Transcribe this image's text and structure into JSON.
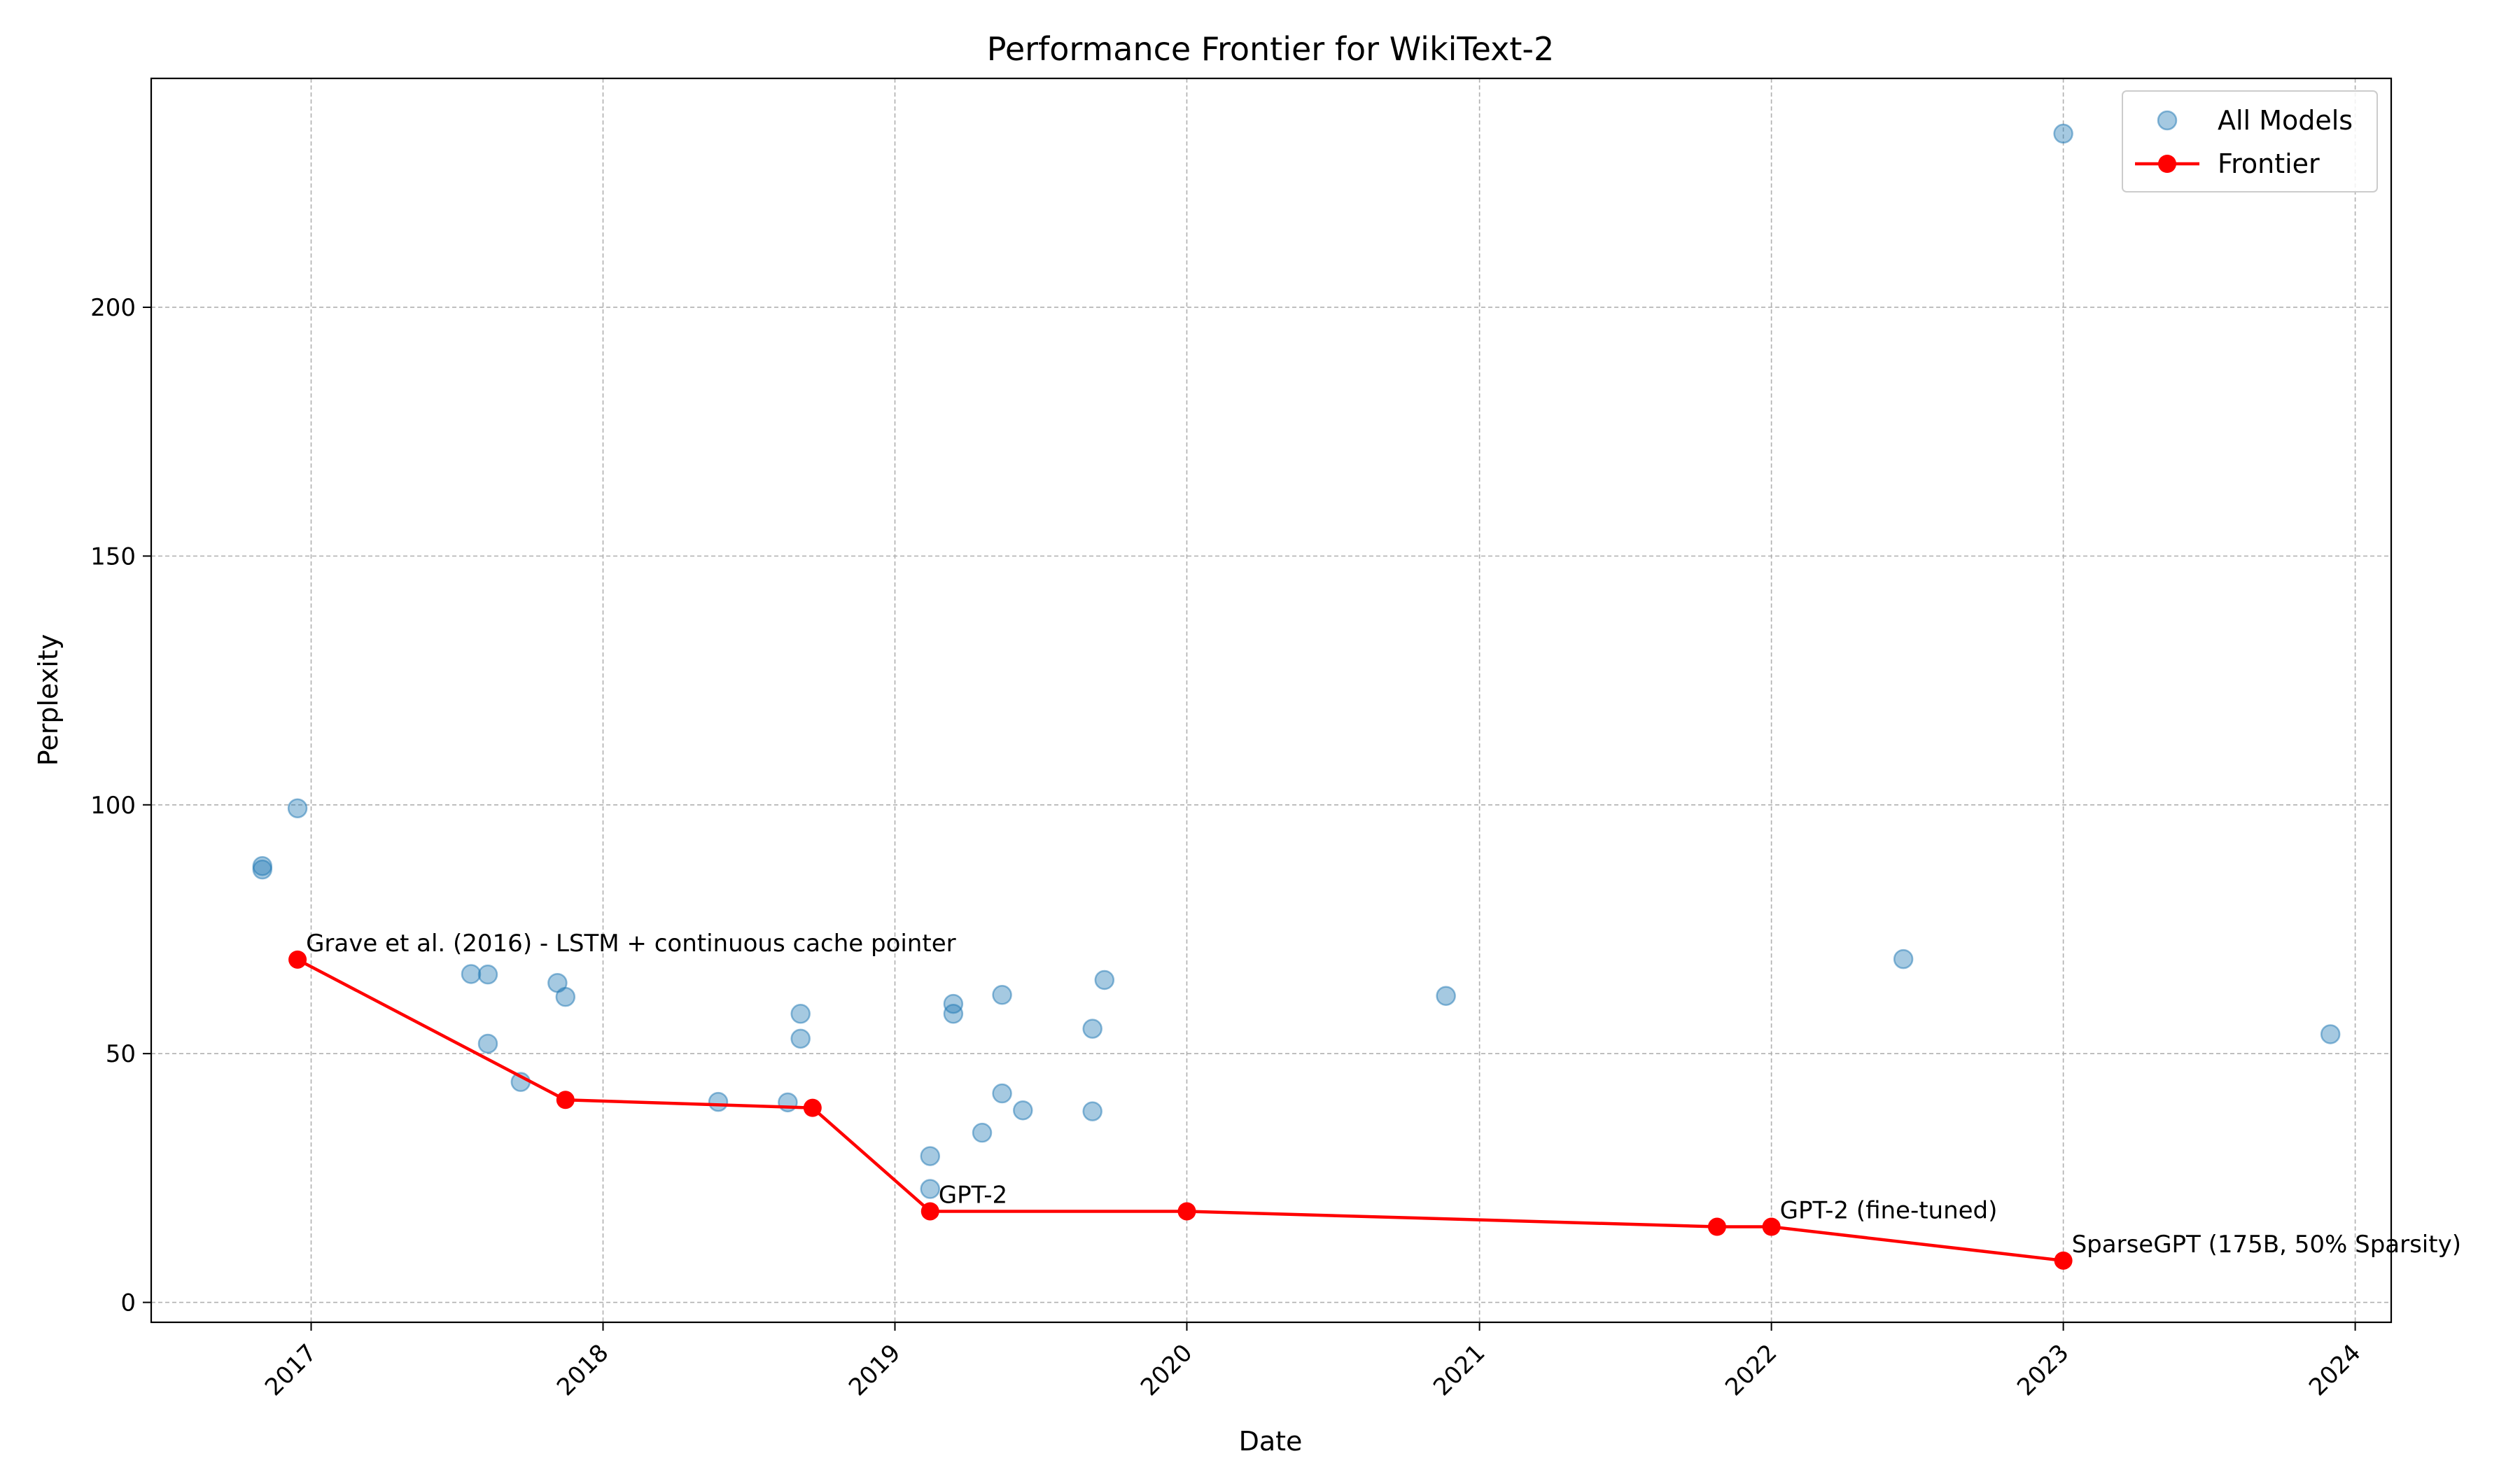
{
  "chart_data": {
    "type": "scatter",
    "title": "Performance Frontier for WikiText-2",
    "xlabel": "Date",
    "ylabel": "Perplexity",
    "xlim": [
      "2016-06-15",
      "2024-02-15"
    ],
    "ylim": [
      -4,
      246
    ],
    "x_ticks": [
      "2017",
      "2018",
      "2019",
      "2020",
      "2021",
      "2022",
      "2023",
      "2024"
    ],
    "y_ticks": [
      0,
      50,
      100,
      150,
      200
    ],
    "grid": true,
    "legend_position": "top-right",
    "colors": {
      "all_models": "#1f77b4",
      "frontier": "#ff0000"
    },
    "series": [
      {
        "name": "All Models",
        "kind": "scatter",
        "points": [
          {
            "x": "2016-11-01",
            "y": 87.7
          },
          {
            "x": "2016-11-01",
            "y": 87.0
          },
          {
            "x": "2016-12-15",
            "y": 99.3
          },
          {
            "x": "2017-07-20",
            "y": 66.0
          },
          {
            "x": "2017-08-10",
            "y": 65.9
          },
          {
            "x": "2017-08-10",
            "y": 52.0
          },
          {
            "x": "2017-09-20",
            "y": 44.3
          },
          {
            "x": "2017-11-05",
            "y": 64.2
          },
          {
            "x": "2017-11-15",
            "y": 61.4
          },
          {
            "x": "2018-05-25",
            "y": 40.3
          },
          {
            "x": "2018-08-20",
            "y": 40.2
          },
          {
            "x": "2018-09-05",
            "y": 58.0
          },
          {
            "x": "2018-09-05",
            "y": 53.0
          },
          {
            "x": "2019-02-14",
            "y": 29.4
          },
          {
            "x": "2019-02-14",
            "y": 22.8
          },
          {
            "x": "2019-03-15",
            "y": 60.0
          },
          {
            "x": "2019-03-15",
            "y": 58.0
          },
          {
            "x": "2019-04-20",
            "y": 34.1
          },
          {
            "x": "2019-05-15",
            "y": 61.8
          },
          {
            "x": "2019-05-15",
            "y": 42.0
          },
          {
            "x": "2019-06-10",
            "y": 38.6
          },
          {
            "x": "2019-09-05",
            "y": 55.0
          },
          {
            "x": "2019-09-05",
            "y": 38.4
          },
          {
            "x": "2019-09-20",
            "y": 64.8
          },
          {
            "x": "2020-11-20",
            "y": 61.6
          },
          {
            "x": "2022-06-15",
            "y": 69.0
          },
          {
            "x": "2023-01-01",
            "y": 234.9
          },
          {
            "x": "2023-12-01",
            "y": 53.9
          }
        ]
      },
      {
        "name": "Frontier",
        "kind": "line",
        "points": [
          {
            "x": "2016-12-15",
            "y": 68.9
          },
          {
            "x": "2017-11-15",
            "y": 40.7
          },
          {
            "x": "2018-09-20",
            "y": 39.1
          },
          {
            "x": "2019-02-14",
            "y": 18.3
          },
          {
            "x": "2020-01-01",
            "y": 18.3
          },
          {
            "x": "2021-10-25",
            "y": 15.2
          },
          {
            "x": "2022-01-01",
            "y": 15.2
          },
          {
            "x": "2023-01-01",
            "y": 8.4
          }
        ]
      }
    ],
    "annotations": [
      {
        "text": "Grave et al. (2016) - LSTM + continuous cache pointer",
        "x": "2016-12-15",
        "y": 68.9
      },
      {
        "text": "GPT-2",
        "x": "2019-02-14",
        "y": 18.3
      },
      {
        "text": "GPT-2 (fine-tuned)",
        "x": "2022-01-01",
        "y": 15.2
      },
      {
        "text": "SparseGPT (175B, 50% Sparsity)",
        "x": "2023-01-01",
        "y": 8.4
      }
    ]
  }
}
